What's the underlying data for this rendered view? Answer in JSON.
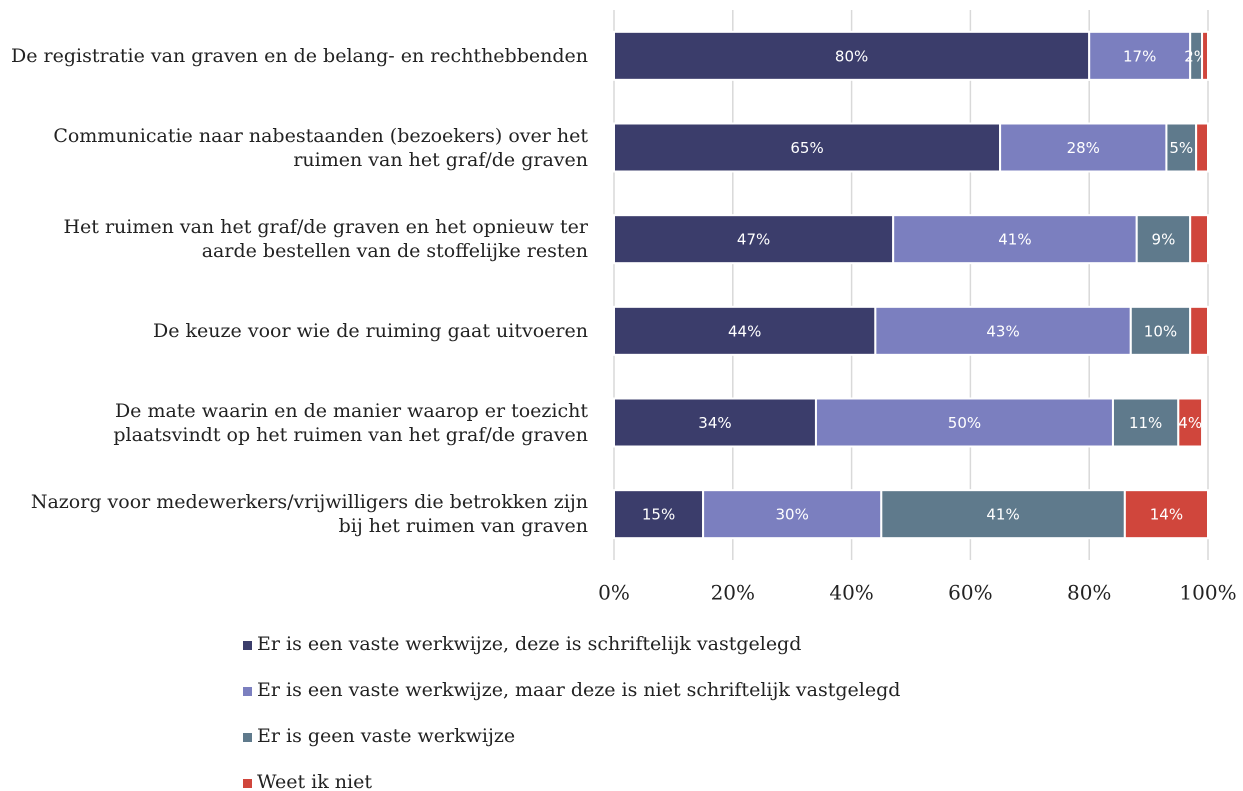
{
  "chart_data": {
    "type": "stacked-bar-horizontal",
    "categories": [
      "De registratie van graven en de belang- en rechthebbenden",
      "Communicatie naar nabestaanden (bezoekers) over het ruimen van het graf/de graven",
      "Het ruimen van het graf/de graven en het opnieuw ter aarde bestellen van de stoffelijke resten",
      "De keuze voor wie de ruiming gaat uitvoeren",
      "De mate waarin en de manier waarop er toezicht plaatsvindt op het ruimen van het graf/de graven",
      "Nazorg voor medewerkers/vrijwilligers die betrokken zijn bij het ruimen van graven"
    ],
    "series": [
      {
        "name": "Er is een vaste werkwijze, deze is schriftelijk vastgelegd",
        "color": "#3b3d6b",
        "values": [
          80,
          65,
          47,
          44,
          34,
          15
        ],
        "value_labels": [
          "80%",
          "65%",
          "47%",
          "44%",
          "34%",
          "15%"
        ]
      },
      {
        "name": "Er is een vaste werkwijze, maar deze is niet schriftelijk vastgelegd",
        "color": "#7b7fbf",
        "values": [
          17,
          28,
          41,
          43,
          50,
          30
        ],
        "value_labels": [
          "17%",
          "28%",
          "41%",
          "43%",
          "50%",
          "30%"
        ]
      },
      {
        "name": "Er is geen vaste werkwijze",
        "color": "#5f7a8c",
        "values": [
          2,
          5,
          9,
          10,
          11,
          41
        ],
        "value_labels": [
          "2%",
          "5%",
          "9%",
          "10%",
          "11%",
          "41%"
        ]
      },
      {
        "name": "Weet ik niet",
        "color": "#d0463c",
        "values": [
          1,
          2,
          3,
          3,
          4,
          14
        ],
        "value_labels": [
          null,
          null,
          null,
          null,
          "4%",
          "14%"
        ]
      }
    ],
    "xlim": [
      0,
      100
    ],
    "xticks": [
      {
        "value": 0,
        "label": "0%"
      },
      {
        "value": 20,
        "label": "20%"
      },
      {
        "value": 40,
        "label": "40%"
      },
      {
        "value": 60,
        "label": "60%"
      },
      {
        "value": 80,
        "label": "80%"
      },
      {
        "value": 100,
        "label": "100%"
      }
    ],
    "grid": true
  }
}
